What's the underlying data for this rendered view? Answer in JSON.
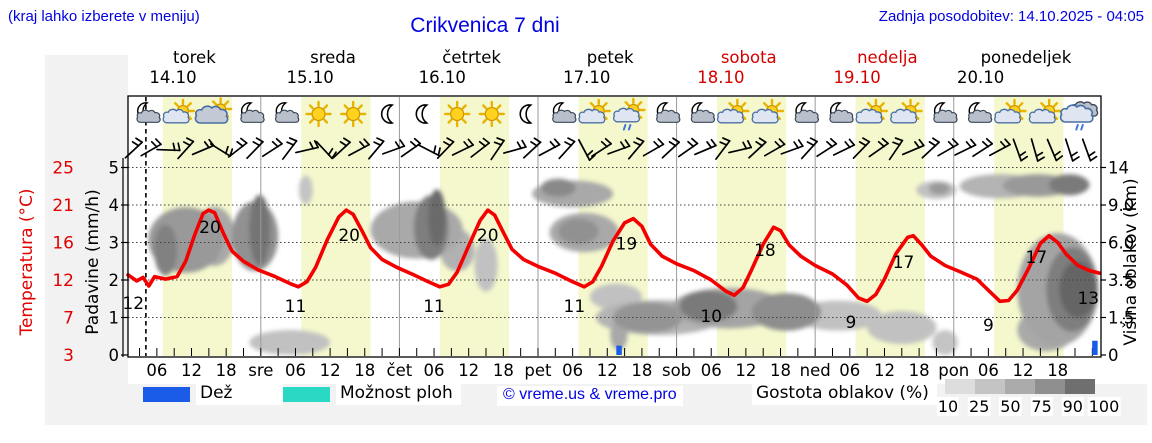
{
  "header": {
    "hint": "(kraj lahko izberete v meniju)",
    "title": "Crikvenica 7 dni",
    "updated": "Zadnja posodobitev: 14.10.2025 - 04:05"
  },
  "axes": {
    "temp": {
      "label": "Temperatura (°C)",
      "ticks": [
        "25",
        "21",
        "16",
        "12",
        "7",
        "3"
      ]
    },
    "precip": {
      "label": "Padavine (mm/h)",
      "ticks": [
        "5",
        "4",
        "3",
        "2",
        "1",
        "0"
      ]
    },
    "cloud": {
      "label": "Višina oblakov (km)",
      "ticks": [
        "14",
        "9.0",
        "6.0",
        "3.5",
        "1.5",
        "0"
      ]
    }
  },
  "legend": {
    "rain": "Dež",
    "showers": "Možnost ploh",
    "copyright": "© vreme.us & vreme.pro",
    "cloud_density": "Gostota oblakov (%)",
    "density_ticks": [
      "10",
      "25",
      "50",
      "75",
      "90",
      "100"
    ]
  },
  "colors": {
    "blue_text": "#0202e0",
    "red": "#e10000",
    "curve": "#f40000",
    "weekend": "#d40000",
    "day_band": "#f5f8cd",
    "rain": "#1a5ce8",
    "showers": "#29d9c4",
    "separator": "#9a9a9a",
    "density_scale": [
      "#dddddd",
      "#c4c4c4",
      "#ababab",
      "#8f8f8f",
      "#6f6f6f"
    ]
  },
  "chart_data": {
    "type": "line",
    "title": "Crikvenica 7 dni",
    "x_unit": "hours from 00:00 on 14.10",
    "x_range_hours": [
      1,
      169.5
    ],
    "daylight_hours": [
      7,
      19
    ],
    "now_line_hour": 4.1,
    "minor_tick_step_h": 3,
    "days": [
      {
        "name": "torek",
        "date": "14.10",
        "weekend": false,
        "icons": [
          "moon-cloud",
          "sun-cloud",
          "cloud-sun",
          "moon-cloud"
        ]
      },
      {
        "name": "sreda",
        "date": "15.10",
        "weekend": false,
        "icons": [
          "moon-cloud",
          "sun",
          "sun",
          "moon"
        ]
      },
      {
        "name": "četrtek",
        "date": "16.10",
        "weekend": false,
        "icons": [
          "moon",
          "sun",
          "sun",
          "moon"
        ]
      },
      {
        "name": "petek",
        "date": "17.10",
        "weekend": false,
        "icons": [
          "moon-cloud",
          "sun-cloud",
          "sun-cloud-rain",
          "moon-cloud"
        ]
      },
      {
        "name": "sobota",
        "date": "18.10",
        "weekend": true,
        "icons": [
          "moon-cloud",
          "sun-cloud",
          "sun-cloud",
          "moon-cloud"
        ]
      },
      {
        "name": "nedelja",
        "date": "19.10",
        "weekend": true,
        "icons": [
          "moon-cloud",
          "sun-cloud",
          "sun-cloud",
          "moon-cloud"
        ]
      },
      {
        "name": "ponedeljek",
        "date": "20.10",
        "weekend": false,
        "icons": [
          "moon-cloud",
          "sun-cloud",
          "sun-cloud",
          "cloud-rain"
        ]
      }
    ],
    "x_tick_labels": [
      "06",
      "12",
      "18",
      "sre",
      "06",
      "12",
      "18",
      "čet",
      "06",
      "12",
      "18",
      "pet",
      "06",
      "12",
      "18",
      "sob",
      "06",
      "12",
      "18",
      "ned",
      "06",
      "12",
      "18",
      "pon",
      "06",
      "12",
      "18"
    ],
    "temperature_series": {
      "name": "Temperatura",
      "points": [
        [
          1,
          12.4
        ],
        [
          2.5,
          11.7
        ],
        [
          3.6,
          12.1
        ],
        [
          4.6,
          11.1
        ],
        [
          5.6,
          12.2
        ],
        [
          7.5,
          11.9
        ],
        [
          9.5,
          12.2
        ],
        [
          11,
          14
        ],
        [
          12.5,
          17
        ],
        [
          14,
          19.6
        ],
        [
          15,
          20
        ],
        [
          16,
          19.7
        ],
        [
          17.5,
          17.3
        ],
        [
          19,
          15.2
        ],
        [
          21,
          14
        ],
        [
          23.5,
          13
        ],
        [
          26.5,
          12.2
        ],
        [
          29,
          11.4
        ],
        [
          30.5,
          11
        ],
        [
          32,
          11.6
        ],
        [
          33.5,
          13.3
        ],
        [
          35.5,
          16.5
        ],
        [
          37.5,
          19.2
        ],
        [
          38.8,
          20
        ],
        [
          40,
          19.5
        ],
        [
          41.5,
          17.6
        ],
        [
          43,
          15.6
        ],
        [
          45,
          14.2
        ],
        [
          47.5,
          13.3
        ],
        [
          50.5,
          12.4
        ],
        [
          53,
          11.6
        ],
        [
          55,
          11
        ],
        [
          56.5,
          11.3
        ],
        [
          58,
          12.7
        ],
        [
          60,
          15.8
        ],
        [
          62,
          18.8
        ],
        [
          63.3,
          20
        ],
        [
          64.5,
          19.4
        ],
        [
          66,
          17.4
        ],
        [
          67.5,
          15.4
        ],
        [
          69.5,
          14.2
        ],
        [
          72,
          13.4
        ],
        [
          75,
          12.6
        ],
        [
          78,
          11.6
        ],
        [
          80,
          11
        ],
        [
          81.5,
          11.6
        ],
        [
          83,
          13.4
        ],
        [
          85,
          16.4
        ],
        [
          87,
          18.5
        ],
        [
          88.5,
          19
        ],
        [
          90,
          18.1
        ],
        [
          91.5,
          16
        ],
        [
          93.5,
          14.6
        ],
        [
          96,
          13.7
        ],
        [
          99,
          12.9
        ],
        [
          102,
          11.8
        ],
        [
          104.5,
          10.5
        ],
        [
          106,
          10
        ],
        [
          107.5,
          10.9
        ],
        [
          109,
          13
        ],
        [
          111,
          16
        ],
        [
          112.8,
          18
        ],
        [
          114,
          17.6
        ],
        [
          115.5,
          15.9
        ],
        [
          117.5,
          14.6
        ],
        [
          120,
          13.5
        ],
        [
          123,
          12.5
        ],
        [
          125.5,
          11.2
        ],
        [
          127.5,
          9.7
        ],
        [
          129,
          9.3
        ],
        [
          130.5,
          10.1
        ],
        [
          132,
          11.9
        ],
        [
          134,
          14.9
        ],
        [
          136,
          16.8
        ],
        [
          137,
          17
        ],
        [
          138.5,
          15.9
        ],
        [
          140,
          14.6
        ],
        [
          142.5,
          13.5
        ],
        [
          145,
          12.8
        ],
        [
          148,
          11.9
        ],
        [
          150.3,
          10.4
        ],
        [
          152,
          9.3
        ],
        [
          153.5,
          9.4
        ],
        [
          155,
          10.6
        ],
        [
          157,
          13.2
        ],
        [
          159,
          16.1
        ],
        [
          160.5,
          17
        ],
        [
          162,
          16.2
        ],
        [
          163.5,
          14.8
        ],
        [
          165.5,
          13.5
        ],
        [
          167.5,
          12.9
        ],
        [
          169.3,
          12.6
        ]
      ]
    },
    "temp_point_labels": [
      {
        "v": "12",
        "h": 1.9,
        "t": 9.1
      },
      {
        "v": "20",
        "h": 15.2,
        "t": 18.0
      },
      {
        "v": "11",
        "h": 30,
        "t": 8.75
      },
      {
        "v": "20",
        "h": 39.3,
        "t": 17.1
      },
      {
        "v": "11",
        "h": 54,
        "t": 8.75
      },
      {
        "v": "20",
        "h": 63.3,
        "t": 17.1
      },
      {
        "v": "11",
        "h": 78.3,
        "t": 8.75
      },
      {
        "v": "19",
        "h": 87.3,
        "t": 16.1
      },
      {
        "v": "10",
        "h": 102,
        "t": 7.6
      },
      {
        "v": "18",
        "h": 111.3,
        "t": 15.3
      },
      {
        "v": "9",
        "h": 126.2,
        "t": 6.9
      },
      {
        "v": "17",
        "h": 135.3,
        "t": 13.9
      },
      {
        "v": "9",
        "h": 150,
        "t": 6.5
      },
      {
        "v": "17",
        "h": 158.3,
        "t": 14.5
      },
      {
        "v": "13",
        "h": 167.3,
        "t": 9.7
      }
    ],
    "rain_bars_mm": [
      {
        "h": 86,
        "mm": 0.25
      },
      {
        "h": 168.4,
        "mm": 0.38
      }
    ],
    "cloud_blobs_h_km_rh_rkm_density": [
      [
        11,
        6.2,
        6.5,
        2.4,
        55
      ],
      [
        7.5,
        5.5,
        2,
        1.8,
        70
      ],
      [
        16,
        6.5,
        3.5,
        2.2,
        45
      ],
      [
        23,
        6.5,
        4,
        2.6,
        60
      ],
      [
        23.8,
        7,
        1.8,
        2.8,
        78
      ],
      [
        29,
        0.5,
        7,
        0.5,
        30
      ],
      [
        31.8,
        11,
        1.2,
        1.9,
        28
      ],
      [
        51,
        7,
        8,
        2.2,
        45
      ],
      [
        53.5,
        7.2,
        3,
        2.6,
        72
      ],
      [
        54.5,
        8,
        1.5,
        2.5,
        85
      ],
      [
        58,
        5.5,
        3,
        1.5,
        40
      ],
      [
        63,
        4.5,
        2,
        1.7,
        30
      ],
      [
        78,
        10.5,
        7,
        1.7,
        45
      ],
      [
        75.5,
        11.3,
        3,
        1.2,
        65
      ],
      [
        80,
        6.8,
        6,
        1.5,
        45
      ],
      [
        79,
        6.9,
        3.5,
        1,
        60
      ],
      [
        86,
        0.8,
        1.5,
        0.6,
        45
      ],
      [
        93,
        1.5,
        11,
        0.8,
        38
      ],
      [
        91,
        1.5,
        6,
        0.7,
        58
      ],
      [
        85.5,
        2.6,
        4.5,
        0.7,
        30
      ],
      [
        105,
        2,
        10,
        1,
        48
      ],
      [
        101.5,
        2.1,
        5,
        0.8,
        75
      ],
      [
        115,
        1.8,
        6,
        0.9,
        62
      ],
      [
        124,
        1.6,
        7.5,
        0.7,
        30
      ],
      [
        135,
        1.1,
        6,
        0.7,
        30
      ],
      [
        142.5,
        0.5,
        2.2,
        0.5,
        28
      ],
      [
        141,
        11,
        3.5,
        1.2,
        30
      ],
      [
        141.5,
        11.2,
        1.8,
        0.8,
        55
      ],
      [
        152,
        11.5,
        7,
        1.6,
        38
      ],
      [
        158.5,
        11.6,
        6,
        1.5,
        55
      ],
      [
        164,
        11.7,
        3.5,
        1.4,
        75
      ],
      [
        162,
        3,
        7,
        3,
        48
      ],
      [
        164.5,
        3,
        4.5,
        2.3,
        72
      ],
      [
        165.5,
        3,
        3.2,
        1.6,
        88
      ],
      [
        160,
        1,
        5,
        0.9,
        45
      ]
    ],
    "wind_barb_angles": [
      -5,
      8,
      40,
      -10,
      15,
      70,
      0,
      -8,
      5,
      -15,
      25,
      85,
      -5,
      10,
      -12,
      18,
      3,
      65,
      -8,
      12,
      0,
      -18,
      22,
      -5,
      10,
      -10,
      100,
      5,
      18,
      -12,
      8,
      -5,
      3,
      15,
      -15,
      25,
      -5,
      8,
      18,
      -10,
      5,
      12,
      -8,
      3,
      -18,
      15,
      -5,
      8,
      12,
      5,
      10,
      108,
      112,
      105,
      110,
      108
    ]
  }
}
